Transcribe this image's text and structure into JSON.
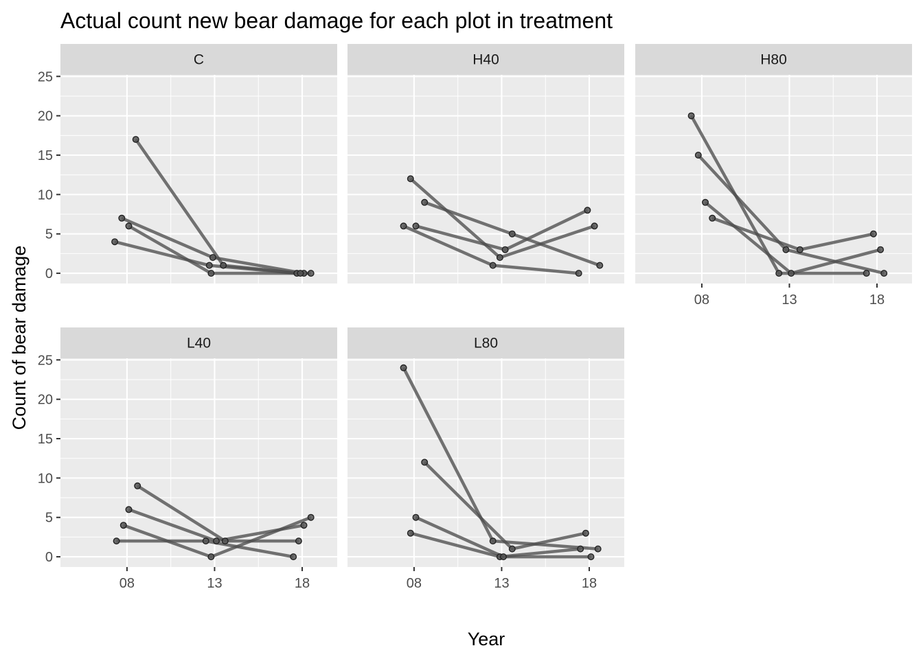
{
  "chart_data": {
    "type": "line",
    "title": "Actual count new bear damage for each plot in treatment",
    "xlabel": "Year",
    "ylabel": "Count of bear damage",
    "x_ticks": [
      {
        "value": 2008,
        "label": "08"
      },
      {
        "value": 2013,
        "label": "13"
      },
      {
        "value": 2018,
        "label": "18"
      }
    ],
    "xlim": [
      2004.2,
      2020.0
    ],
    "y_ticks": [
      0,
      5,
      10,
      15,
      20,
      25
    ],
    "ylim": [
      -1.3,
      25.2
    ],
    "grid": true,
    "legend": "none",
    "panels": [
      {
        "name": "C",
        "series": [
          {
            "x": [
              2007.3,
              2012.7,
              2017.7
            ],
            "y": [
              4,
              1,
              0
            ]
          },
          {
            "x": [
              2007.7,
              2012.9,
              2018.1
            ],
            "y": [
              7,
              2,
              0
            ]
          },
          {
            "x": [
              2008.1,
              2012.8,
              2018.5
            ],
            "y": [
              6,
              0,
              0
            ]
          },
          {
            "x": [
              2008.5,
              2013.5,
              2017.9
            ],
            "y": [
              17,
              1,
              0
            ]
          }
        ]
      },
      {
        "name": "H40",
        "series": [
          {
            "x": [
              2007.4,
              2012.5,
              2017.4
            ],
            "y": [
              6,
              1,
              0
            ]
          },
          {
            "x": [
              2007.8,
              2012.9,
              2018.3
            ],
            "y": [
              12,
              2,
              6
            ]
          },
          {
            "x": [
              2008.1,
              2013.2,
              2017.9
            ],
            "y": [
              6,
              3,
              8
            ]
          },
          {
            "x": [
              2008.6,
              2013.6,
              2018.6
            ],
            "y": [
              9,
              5,
              1
            ]
          }
        ]
      },
      {
        "name": "H80",
        "series": [
          {
            "x": [
              2007.4,
              2012.4,
              2017.4
            ],
            "y": [
              20,
              0,
              0
            ]
          },
          {
            "x": [
              2007.8,
              2012.8,
              2018.4
            ],
            "y": [
              15,
              3,
              0
            ]
          },
          {
            "x": [
              2008.2,
              2013.1,
              2018.2
            ],
            "y": [
              9,
              0,
              3
            ]
          },
          {
            "x": [
              2008.6,
              2013.6,
              2017.8
            ],
            "y": [
              7,
              3,
              5
            ]
          }
        ]
      },
      {
        "name": "L40",
        "series": [
          {
            "x": [
              2007.4,
              2012.5,
              2017.5
            ],
            "y": [
              2,
              2,
              0
            ]
          },
          {
            "x": [
              2007.8,
              2012.8,
              2018.5
            ],
            "y": [
              4,
              0,
              5
            ]
          },
          {
            "x": [
              2008.1,
              2013.1,
              2018.1
            ],
            "y": [
              6,
              2,
              4
            ]
          },
          {
            "x": [
              2008.6,
              2013.6,
              2017.8
            ],
            "y": [
              9,
              2,
              2
            ]
          }
        ]
      },
      {
        "name": "L80",
        "series": [
          {
            "x": [
              2007.4,
              2012.5,
              2018.5
            ],
            "y": [
              24,
              2,
              1
            ]
          },
          {
            "x": [
              2007.8,
              2012.9,
              2017.5
            ],
            "y": [
              3,
              0,
              1
            ]
          },
          {
            "x": [
              2008.1,
              2013.1,
              2018.1
            ],
            "y": [
              5,
              0,
              0
            ]
          },
          {
            "x": [
              2008.6,
              2013.6,
              2017.8
            ],
            "y": [
              12,
              1,
              3
            ]
          }
        ]
      }
    ]
  },
  "colors": {
    "panel_background": "#ebebeb",
    "strip_background": "#d9d9d9",
    "grid": "#ffffff",
    "series": "#4d4d4d"
  }
}
